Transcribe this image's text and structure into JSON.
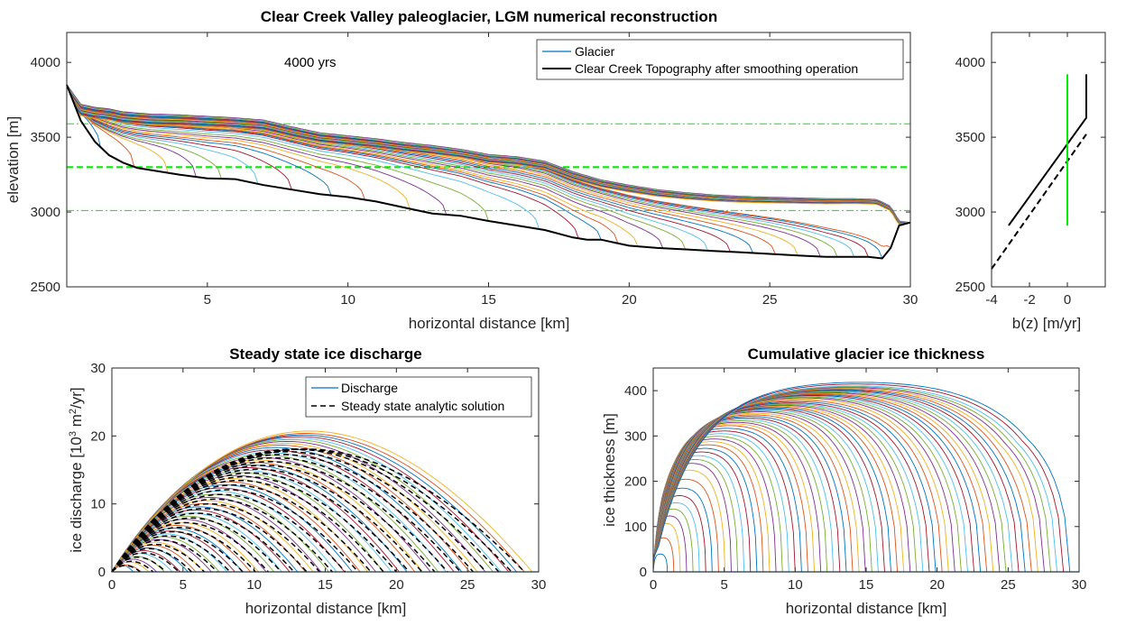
{
  "chart_data": [
    {
      "id": "main",
      "type": "line",
      "title": "Clear Creek Valley paleoglacier, LGM numerical reconstruction",
      "xlabel": "horizontal distance [km]",
      "ylabel": "elevation [m]",
      "xlim": [
        0,
        30
      ],
      "ylim": [
        2500,
        4200
      ],
      "xticks": [
        5,
        10,
        15,
        20,
        25,
        30
      ],
      "yticks": [
        2500,
        3000,
        3500,
        4000
      ],
      "annotation": "4000 yrs",
      "legend": [
        "Glacier",
        "Clear Creek Topography after smoothing operation"
      ],
      "legend_position": "top-right",
      "grid": false,
      "colors": [
        "#0072BD",
        "#D95319",
        "#EDB120",
        "#7E2F8E",
        "#77AC30",
        "#4DBEEE",
        "#A2142F"
      ],
      "topography": {
        "name": "Clear Creek Topography after smoothing operation",
        "x": [
          0,
          0.5,
          1,
          1.5,
          2,
          2.5,
          3,
          4,
          5,
          6,
          7,
          8,
          9,
          10,
          11,
          12,
          13,
          14,
          15,
          16,
          17,
          18,
          18.5,
          19,
          19.5,
          20,
          21,
          22,
          23,
          24,
          25,
          26,
          27,
          28,
          28.5,
          29,
          29.3,
          29.6,
          30
        ],
        "y": [
          3850,
          3610,
          3470,
          3380,
          3330,
          3295,
          3280,
          3250,
          3225,
          3220,
          3180,
          3150,
          3120,
          3100,
          3070,
          3030,
          2990,
          2975,
          2940,
          2910,
          2880,
          2830,
          2815,
          2815,
          2795,
          2775,
          2760,
          2750,
          2740,
          2730,
          2720,
          2710,
          2700,
          2700,
          2700,
          2690,
          2760,
          2910,
          2930
        ]
      },
      "ice_surface_envelope": {
        "x": [
          0,
          0.5,
          1,
          1.5,
          2,
          3,
          4,
          5,
          6,
          7,
          8,
          9,
          10,
          11,
          12,
          13,
          14,
          15,
          16,
          17,
          18,
          19,
          20,
          21,
          22,
          23,
          24,
          25,
          26,
          27,
          28,
          28.8,
          29.3,
          29.6,
          30
        ],
        "y": [
          3850,
          3720,
          3700,
          3690,
          3670,
          3655,
          3650,
          3640,
          3630,
          3615,
          3570,
          3530,
          3510,
          3490,
          3465,
          3445,
          3420,
          3385,
          3370,
          3340,
          3270,
          3215,
          3180,
          3150,
          3130,
          3115,
          3105,
          3100,
          3095,
          3090,
          3090,
          3085,
          3040,
          2940,
          2930
        ]
      },
      "glacier_snapshot_termini_km": [
        1.2,
        2.4,
        3.6,
        4.6,
        5.5,
        6.8,
        8.0,
        9.4,
        10.6,
        12.2,
        13.5,
        15.0,
        16.8,
        18.2,
        19.0,
        19.6,
        20.3,
        21.2,
        22.0,
        22.8,
        23.6,
        24.4,
        25.2,
        26.0,
        26.8,
        27.4,
        28.0,
        28.5,
        29.0,
        29.3
      ],
      "ela_lines_m": [
        {
          "value": 3590,
          "style": "dash-dot"
        },
        {
          "value": 3300,
          "style": "dashed"
        },
        {
          "value": 3010,
          "style": "dash-dot"
        }
      ]
    },
    {
      "id": "mb",
      "type": "line",
      "xlabel": "b(z) [m/yr]",
      "xlim": [
        -4,
        2
      ],
      "ylim": [
        2500,
        4200
      ],
      "xticks": [
        -4,
        -2,
        0
      ],
      "yticks": [
        2500,
        3000,
        3500,
        4000
      ],
      "series": [
        {
          "style": "solid",
          "color": "#000000",
          "x": [
            -3.1,
            1.0,
            1.0
          ],
          "y": [
            2910,
            3630,
            3920
          ]
        },
        {
          "style": "dashed",
          "color": "#000000",
          "x": [
            -4.0,
            1.0
          ],
          "y": [
            2620,
            3520
          ]
        },
        {
          "style": "solid",
          "color": "#00EE00",
          "x": [
            0,
            0
          ],
          "y": [
            2910,
            3920
          ]
        }
      ]
    },
    {
      "id": "discharge",
      "type": "line",
      "title": "Steady state ice discharge",
      "xlabel": "horizontal distance [km]",
      "ylabel_parts": [
        "ice discharge [10",
        "3",
        " m",
        "2",
        "/yr]"
      ],
      "xlim": [
        0,
        30
      ],
      "ylim": [
        0,
        30
      ],
      "xticks": [
        0,
        5,
        10,
        15,
        20,
        25,
        30
      ],
      "yticks": [
        0,
        10,
        20,
        30
      ],
      "legend": [
        "Discharge",
        "Steady state analytic solution"
      ],
      "legend_position": "top-right",
      "discharge_max_envelope": [
        {
          "terminus_km": 2,
          "peak": 1.0
        },
        {
          "terminus_km": 4,
          "peak": 2.5
        },
        {
          "terminus_km": 6,
          "peak": 4.0
        },
        {
          "terminus_km": 8,
          "peak": 5.5
        },
        {
          "terminus_km": 10,
          "peak": 7.0
        },
        {
          "terminus_km": 13,
          "peak": 9.5
        },
        {
          "terminus_km": 16,
          "peak": 12.0
        },
        {
          "terminus_km": 19,
          "peak": 14.5
        },
        {
          "terminus_km": 22,
          "peak": 16.5
        },
        {
          "terminus_km": 25,
          "peak": 18.5
        },
        {
          "terminus_km": 27,
          "peak": 19.5
        },
        {
          "terminus_km": 29,
          "peak": 20.3
        },
        {
          "terminus_km": 29.8,
          "peak": 20.8
        }
      ],
      "analytic_max_peak": 18.0
    },
    {
      "id": "thickness",
      "type": "line",
      "title": "Cumulative glacier ice thickness",
      "xlabel": "horizontal distance [km]",
      "ylabel": "ice thickness [m]",
      "xlim": [
        0,
        30
      ],
      "ylim": [
        0,
        450
      ],
      "xticks": [
        0,
        5,
        10,
        15,
        20,
        25,
        30
      ],
      "yticks": [
        0,
        100,
        200,
        300,
        400
      ],
      "thickness_snapshots": [
        {
          "terminus_km": 1.0,
          "max_m": 40
        },
        {
          "terminus_km": 1.8,
          "max_m": 105
        },
        {
          "terminus_km": 2.6,
          "max_m": 135
        },
        {
          "terminus_km": 3.4,
          "max_m": 160
        },
        {
          "terminus_km": 4.2,
          "max_m": 190
        },
        {
          "terminus_km": 5.3,
          "max_m": 240
        },
        {
          "terminus_km": 6.6,
          "max_m": 265
        },
        {
          "terminus_km": 8.0,
          "max_m": 290
        },
        {
          "terminus_km": 9.5,
          "max_m": 310
        },
        {
          "terminus_km": 11.0,
          "max_m": 330
        },
        {
          "terminus_km": 13.0,
          "max_m": 345
        },
        {
          "terminus_km": 15.0,
          "max_m": 360
        },
        {
          "terminus_km": 17.0,
          "max_m": 370
        },
        {
          "terminus_km": 19.5,
          "max_m": 380
        },
        {
          "terminus_km": 21.0,
          "max_m": 390
        },
        {
          "terminus_km": 23.0,
          "max_m": 398
        },
        {
          "terminus_km": 25.0,
          "max_m": 405
        },
        {
          "terminus_km": 27.0,
          "max_m": 412
        },
        {
          "terminus_km": 28.5,
          "max_m": 418
        },
        {
          "terminus_km": 29.3,
          "max_m": 426
        }
      ]
    }
  ]
}
